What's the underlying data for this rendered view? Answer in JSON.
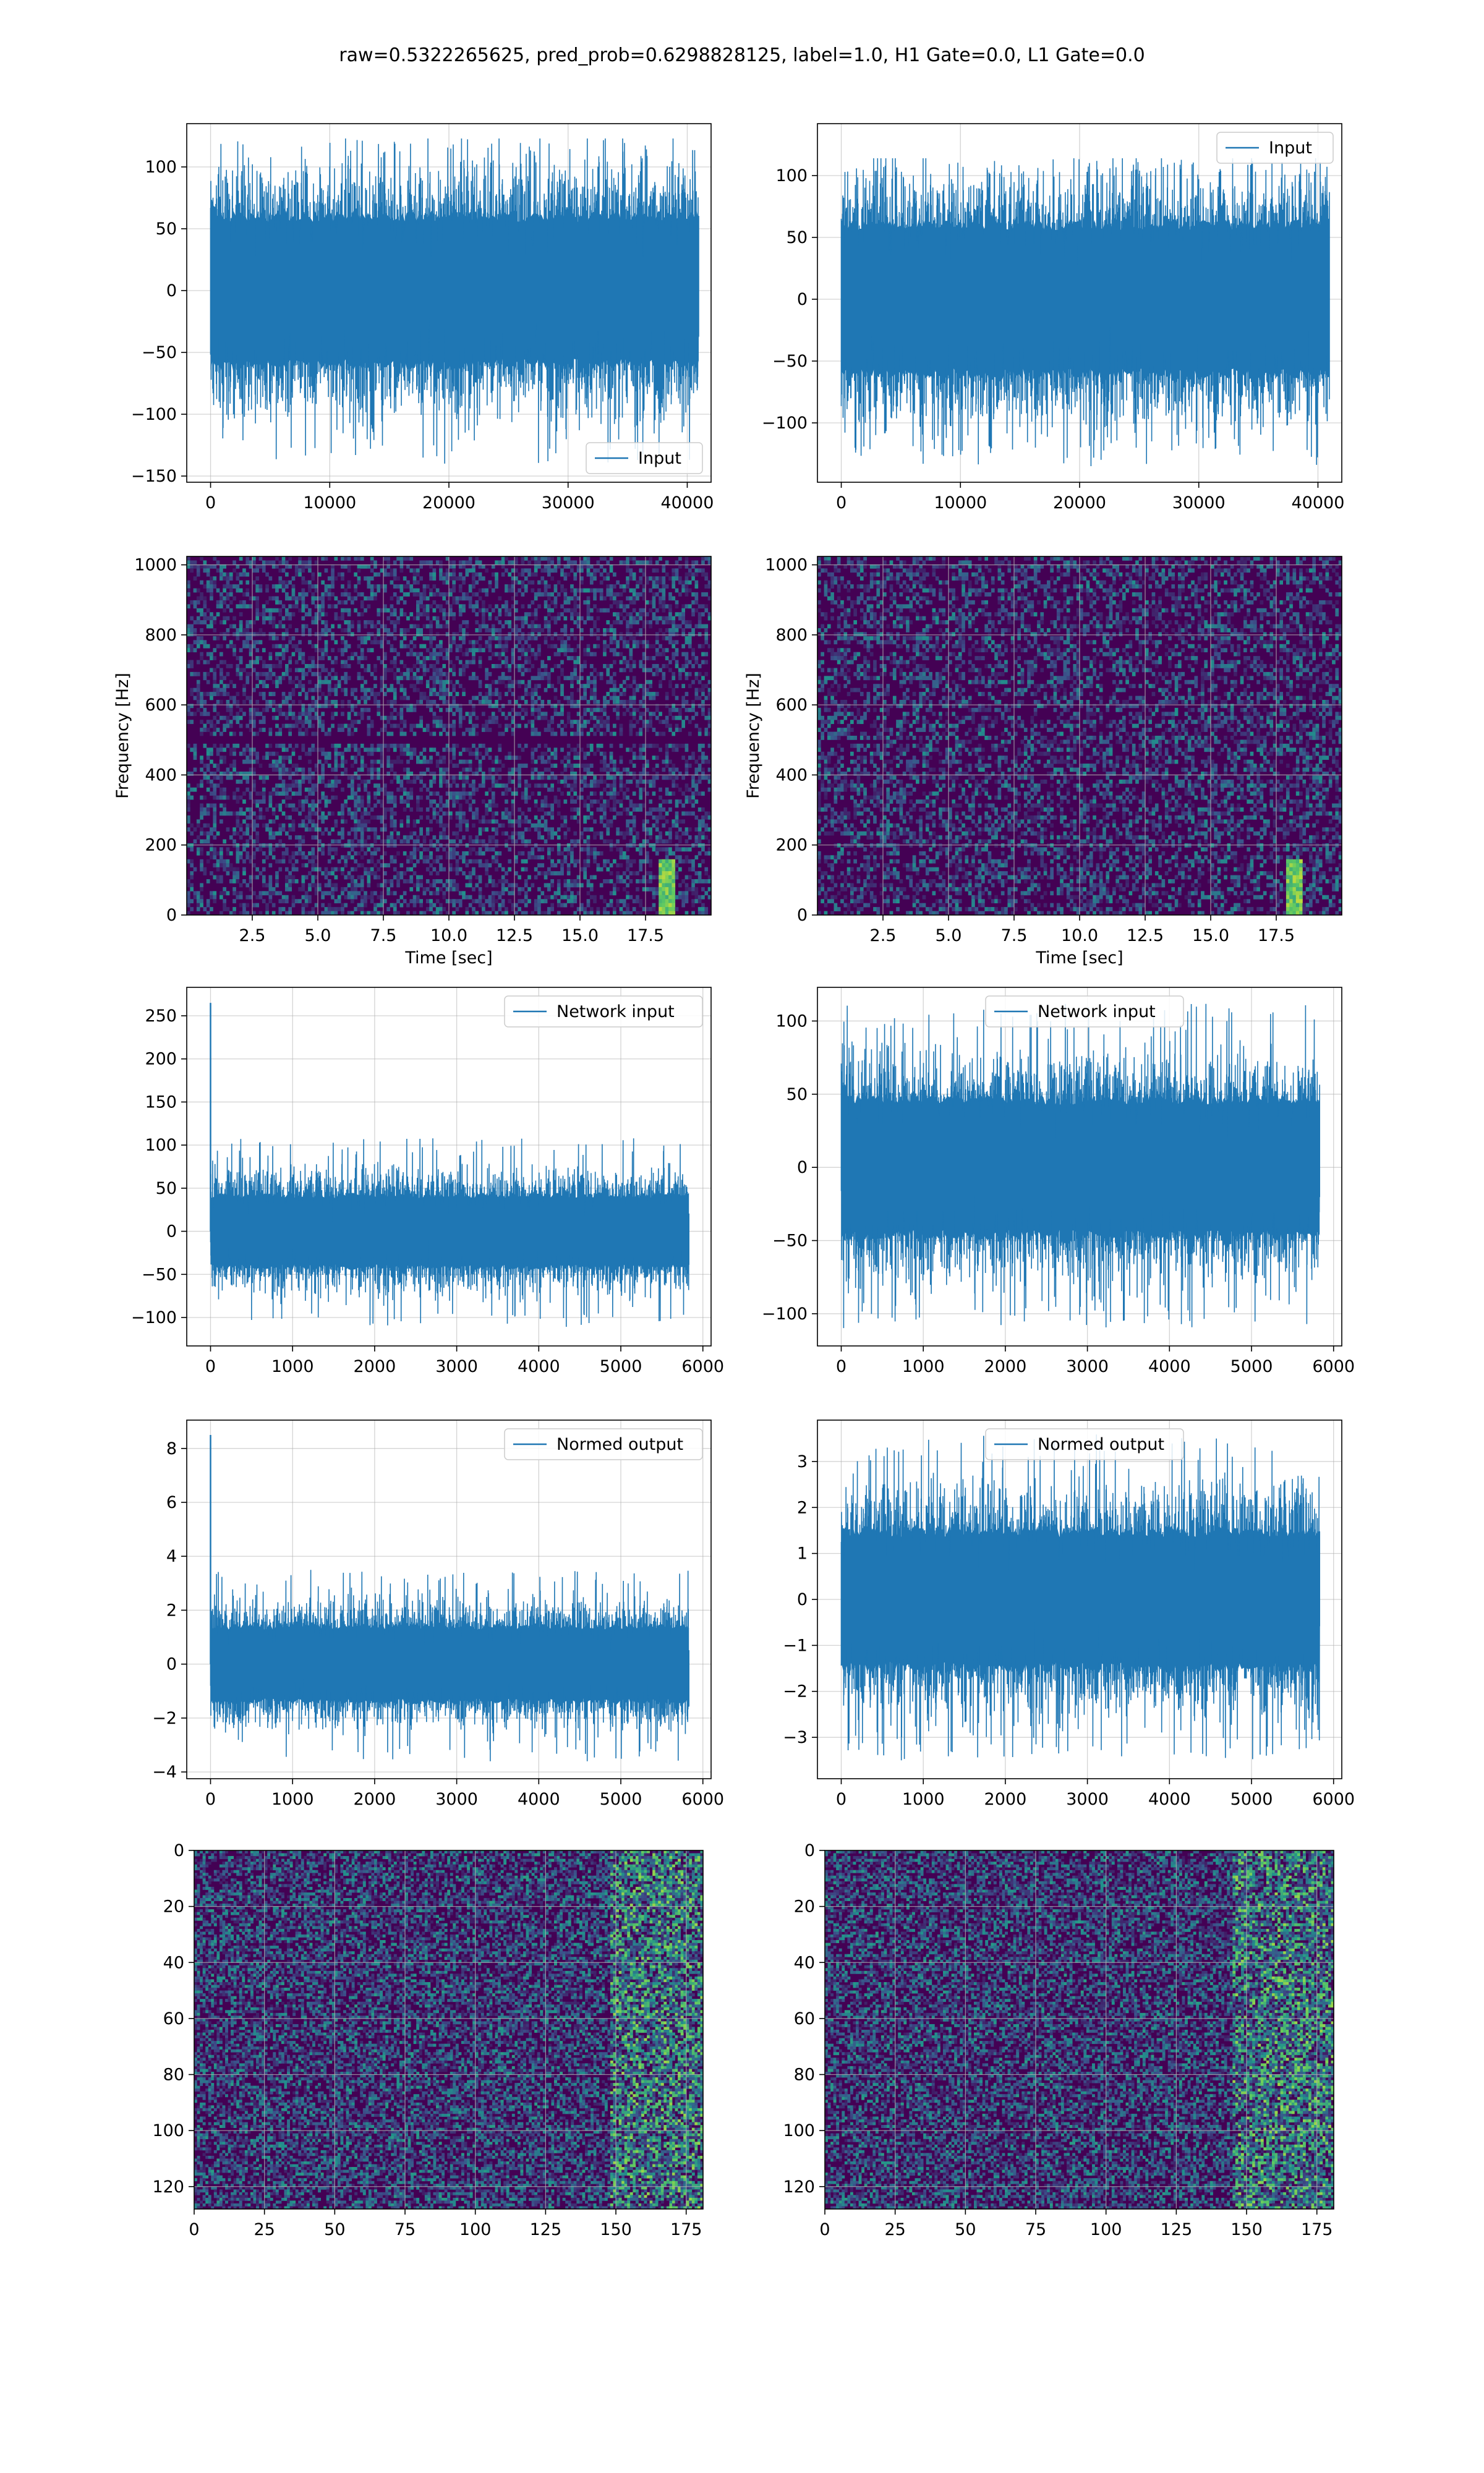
{
  "title": "raw=0.5322265625, pred_prob=0.6298828125, label=1.0, H1 Gate=0.0, L1 Gate=0.0",
  "colors": {
    "line": "#1f77b4",
    "grid": "#b0b0b0",
    "viridis_low": "#440154",
    "viridis_mid": "#21918c",
    "viridis_high": "#fde725"
  },
  "chart_data": [
    {
      "id": "row1-left",
      "type": "line",
      "legend": "Input",
      "legend_position": "lower right",
      "xlim": [
        -2000,
        42000
      ],
      "ylim": [
        -155,
        135
      ],
      "xticks": [
        0,
        10000,
        20000,
        30000,
        40000
      ],
      "xtick_labels": [
        "0",
        "10000",
        "20000",
        "30000",
        "40000"
      ],
      "yticks": [
        -150,
        -100,
        -50,
        0,
        50,
        100
      ],
      "ytick_labels": [
        "−150",
        "−100",
        "−50",
        "0",
        "50",
        "100"
      ],
      "series": {
        "x_start": 0,
        "x_end": 40960,
        "y_min": -140,
        "y_max": 123,
        "y_typical": 65,
        "spike_at": null
      },
      "grid": true
    },
    {
      "id": "row1-right",
      "type": "line",
      "legend": "Input",
      "legend_position": "upper right",
      "xlim": [
        -2000,
        42000
      ],
      "ylim": [
        -148,
        142
      ],
      "xticks": [
        0,
        10000,
        20000,
        30000,
        40000
      ],
      "xtick_labels": [
        "0",
        "10000",
        "20000",
        "30000",
        "40000"
      ],
      "yticks": [
        -100,
        -50,
        0,
        50,
        100
      ],
      "ytick_labels": [
        "−100",
        "−50",
        "0",
        "50",
        "100"
      ],
      "series": {
        "x_start": 0,
        "x_end": 40960,
        "y_min": -135,
        "y_max": 114,
        "y_typical": 65,
        "spike_at": null
      },
      "grid": true
    },
    {
      "id": "row2-left",
      "type": "heatmap",
      "xlabel": "Time [sec]",
      "ylabel": "Frequency [Hz]",
      "xlim": [
        0,
        20
      ],
      "ylim": [
        0,
        1024
      ],
      "xticks": [
        2.5,
        5.0,
        7.5,
        10.0,
        12.5,
        15.0,
        17.5
      ],
      "xtick_labels": [
        "2.5",
        "5.0",
        "7.5",
        "10.0",
        "12.5",
        "15.0",
        "17.5"
      ],
      "yticks": [
        0,
        200,
        400,
        600,
        800,
        1000
      ],
      "ytick_labels": [
        "0",
        "200",
        "400",
        "600",
        "800",
        "1000"
      ],
      "colormap": "viridis",
      "grid": true,
      "features": {
        "dark_band_hz": 500,
        "chirp_at_sec": 18.3
      }
    },
    {
      "id": "row2-right",
      "type": "heatmap",
      "xlabel": "Time [sec]",
      "ylabel": "Frequency [Hz]",
      "xlim": [
        0,
        20
      ],
      "ylim": [
        0,
        1024
      ],
      "xticks": [
        2.5,
        5.0,
        7.5,
        10.0,
        12.5,
        15.0,
        17.5
      ],
      "xtick_labels": [
        "2.5",
        "5.0",
        "7.5",
        "10.0",
        "12.5",
        "15.0",
        "17.5"
      ],
      "yticks": [
        0,
        200,
        400,
        600,
        800,
        1000
      ],
      "ytick_labels": [
        "0",
        "200",
        "400",
        "600",
        "800",
        "1000"
      ],
      "colormap": "viridis",
      "grid": true,
      "features": {
        "dark_band_hz": null,
        "chirp_at_sec": 18.2
      }
    },
    {
      "id": "row3-left",
      "type": "line",
      "legend": "Network input",
      "legend_position": "upper right",
      "xlim": [
        -290,
        6100
      ],
      "ylim": [
        -133,
        283
      ],
      "xticks": [
        0,
        1000,
        2000,
        3000,
        4000,
        5000,
        6000
      ],
      "xtick_labels": [
        "0",
        "1000",
        "2000",
        "3000",
        "4000",
        "5000",
        "6000"
      ],
      "yticks": [
        -100,
        -50,
        0,
        50,
        100,
        150,
        200,
        250
      ],
      "ytick_labels": [
        "−100",
        "−50",
        "0",
        "50",
        "100",
        "150",
        "200",
        "250"
      ],
      "series": {
        "x_start": 0,
        "x_end": 5830,
        "y_min": -112,
        "y_max": 108,
        "y_typical": 45,
        "spike_at": [
          0,
          265
        ]
      },
      "grid": true
    },
    {
      "id": "row3-right",
      "type": "line",
      "legend": "Network input",
      "legend_position": "upper center",
      "xlim": [
        -290,
        6100
      ],
      "ylim": [
        -122,
        123
      ],
      "xticks": [
        0,
        1000,
        2000,
        3000,
        4000,
        5000,
        6000
      ],
      "xtick_labels": [
        "0",
        "1000",
        "2000",
        "3000",
        "4000",
        "5000",
        "6000"
      ],
      "yticks": [
        -100,
        -50,
        0,
        50,
        100
      ],
      "ytick_labels": [
        "−100",
        "−50",
        "0",
        "50",
        "100"
      ],
      "series": {
        "x_start": 0,
        "x_end": 5830,
        "y_min": -110,
        "y_max": 112,
        "y_typical": 50,
        "spike_at": null
      },
      "grid": true
    },
    {
      "id": "row4-left",
      "type": "line",
      "legend": "Normed output",
      "legend_position": "upper right",
      "xlim": [
        -290,
        6100
      ],
      "ylim": [
        -4.25,
        9.05
      ],
      "xticks": [
        0,
        1000,
        2000,
        3000,
        4000,
        5000,
        6000
      ],
      "xtick_labels": [
        "0",
        "1000",
        "2000",
        "3000",
        "4000",
        "5000",
        "6000"
      ],
      "yticks": [
        -4,
        -2,
        0,
        2,
        4,
        6,
        8
      ],
      "ytick_labels": [
        "−4",
        "−2",
        "0",
        "2",
        "4",
        "6",
        "8"
      ],
      "series": {
        "x_start": 0,
        "x_end": 5830,
        "y_min": -3.6,
        "y_max": 3.5,
        "y_typical": 1.5,
        "spike_at": [
          0,
          8.5
        ]
      },
      "grid": true
    },
    {
      "id": "row4-right",
      "type": "line",
      "legend": "Normed output",
      "legend_position": "upper center",
      "xlim": [
        -290,
        6100
      ],
      "ylim": [
        -3.9,
        3.9
      ],
      "xticks": [
        0,
        1000,
        2000,
        3000,
        4000,
        5000,
        6000
      ],
      "xtick_labels": [
        "0",
        "1000",
        "2000",
        "3000",
        "4000",
        "5000",
        "6000"
      ],
      "yticks": [
        -3,
        -2,
        -1,
        0,
        1,
        2,
        3
      ],
      "ytick_labels": [
        "−3",
        "−2",
        "−1",
        "0",
        "1",
        "2",
        "3"
      ],
      "series": {
        "x_start": 0,
        "x_end": 5830,
        "y_min": -3.5,
        "y_max": 3.6,
        "y_typical": 1.6,
        "spike_at": null
      },
      "grid": true
    },
    {
      "id": "row5-left",
      "type": "heatmap",
      "xlim": [
        0,
        181
      ],
      "ylim": [
        128,
        0
      ],
      "xticks": [
        0,
        25,
        50,
        75,
        100,
        125,
        150,
        175
      ],
      "xtick_labels": [
        "0",
        "25",
        "50",
        "75",
        "100",
        "125",
        "150",
        "175"
      ],
      "yticks": [
        0,
        20,
        40,
        60,
        80,
        100,
        120
      ],
      "ytick_labels": [
        "0",
        "20",
        "40",
        "60",
        "80",
        "100",
        "120"
      ],
      "colormap": "viridis",
      "grid": true,
      "features": {
        "bright_columns_from": 148
      }
    },
    {
      "id": "row5-right",
      "type": "heatmap",
      "xlim": [
        0,
        181
      ],
      "ylim": [
        128,
        0
      ],
      "xticks": [
        0,
        25,
        50,
        75,
        100,
        125,
        150,
        175
      ],
      "xtick_labels": [
        "0",
        "25",
        "50",
        "75",
        "100",
        "125",
        "150",
        "175"
      ],
      "yticks": [
        0,
        20,
        40,
        60,
        80,
        100,
        120
      ],
      "ytick_labels": [
        "0",
        "20",
        "40",
        "60",
        "80",
        "100",
        "120"
      ],
      "colormap": "viridis",
      "grid": true,
      "features": {
        "bright_columns_from": 145
      }
    }
  ]
}
